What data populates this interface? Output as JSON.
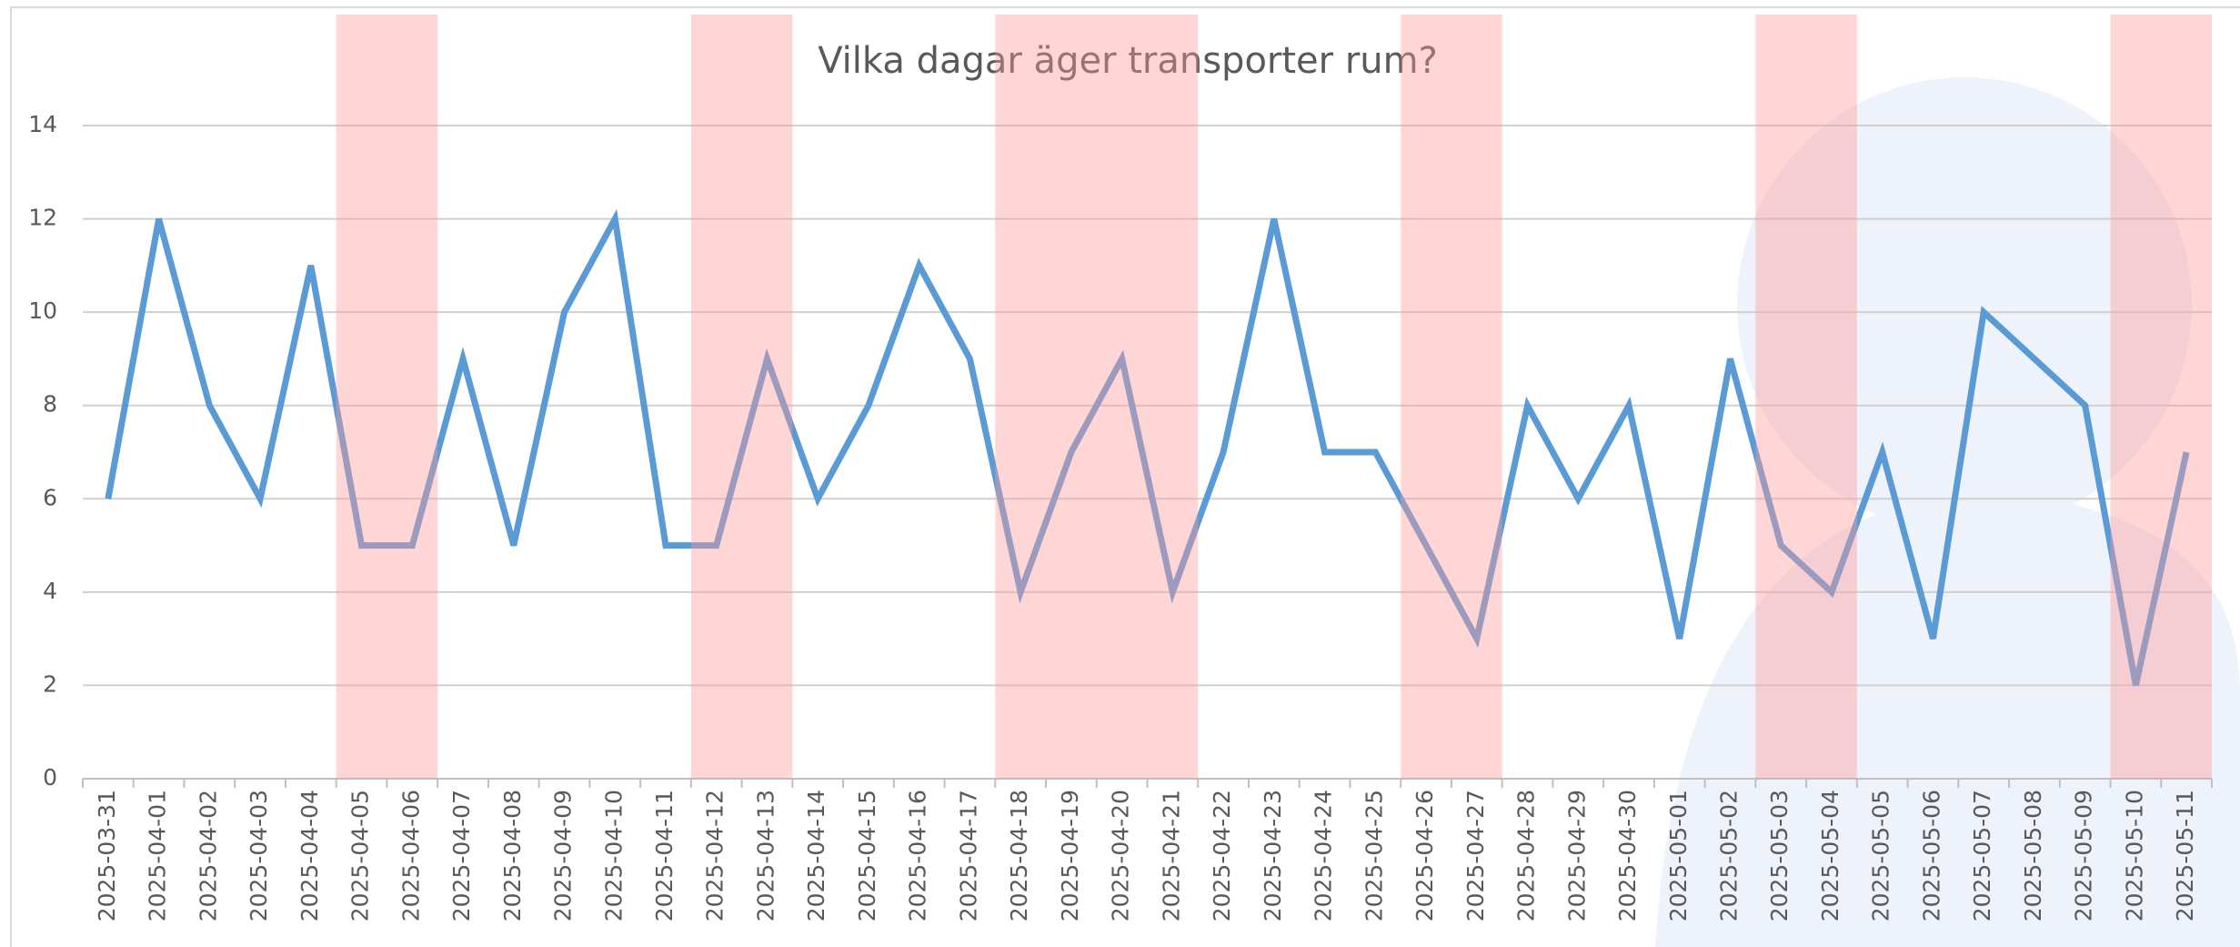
{
  "chart_data": {
    "type": "line",
    "title": "Vilka dagar äger transporter rum?",
    "categories": [
      "2025-03-31",
      "2025-04-01",
      "2025-04-02",
      "2025-04-03",
      "2025-04-04",
      "2025-04-05",
      "2025-04-06",
      "2025-04-07",
      "2025-04-08",
      "2025-04-09",
      "2025-04-10",
      "2025-04-11",
      "2025-04-12",
      "2025-04-13",
      "2025-04-14",
      "2025-04-15",
      "2025-04-16",
      "2025-04-17",
      "2025-04-18",
      "2025-04-19",
      "2025-04-20",
      "2025-04-21",
      "2025-04-22",
      "2025-04-23",
      "2025-04-24",
      "2025-04-25",
      "2025-04-26",
      "2025-04-27",
      "2025-04-28",
      "2025-04-29",
      "2025-04-30",
      "2025-05-01",
      "2025-05-02",
      "2025-05-03",
      "2025-05-04",
      "2025-05-05",
      "2025-05-06",
      "2025-05-07",
      "2025-05-08",
      "2025-05-09",
      "2025-05-10",
      "2025-05-11"
    ],
    "values": [
      6,
      12,
      8,
      6,
      11,
      5,
      5,
      9,
      5,
      10,
      12,
      5,
      5,
      9,
      6,
      8,
      11,
      9,
      4,
      7,
      9,
      4,
      7,
      12,
      7,
      7,
      5,
      3,
      8,
      6,
      8,
      3,
      9,
      5,
      4,
      7,
      3,
      10,
      9,
      8,
      2,
      7
    ],
    "color": "#5b9bd5",
    "ylim": [
      0,
      14
    ],
    "yticks": [
      0,
      2,
      4,
      6,
      8,
      10,
      12,
      14
    ],
    "grid": true,
    "highlight": [
      [
        "2025-04-05",
        "2025-04-06"
      ],
      [
        "2025-04-12",
        "2025-04-13"
      ],
      [
        "2025-04-18",
        "2025-04-21"
      ],
      [
        "2025-04-26",
        "2025-04-27"
      ],
      [
        "2025-05-03",
        "2025-05-04"
      ],
      [
        "2025-05-10",
        "2025-05-11"
      ]
    ],
    "highlight_color": "#ff9999"
  }
}
